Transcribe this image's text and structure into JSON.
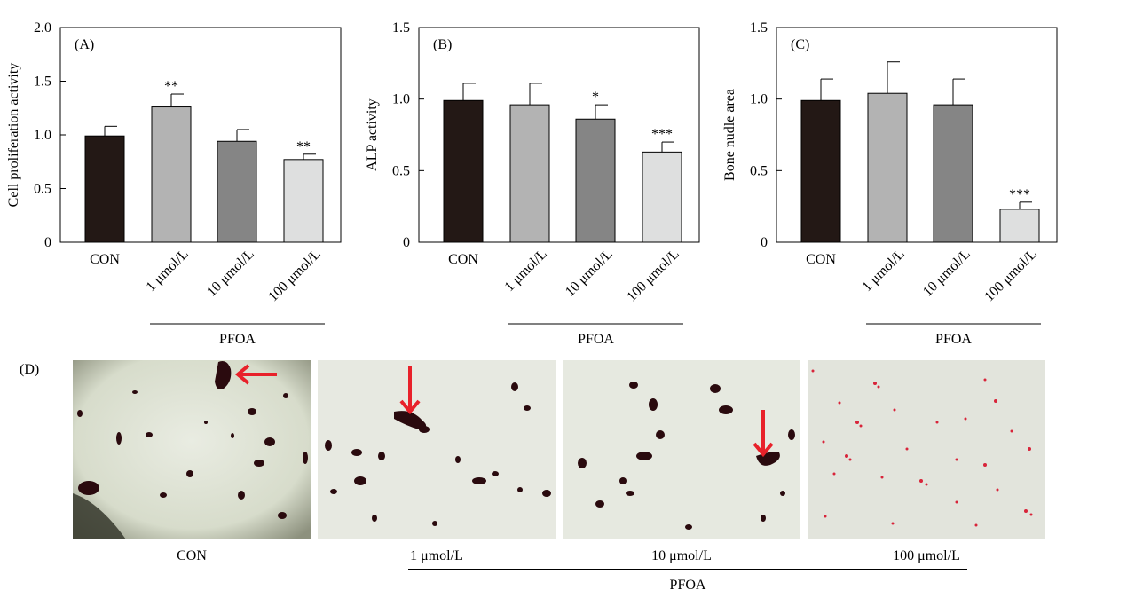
{
  "colors": {
    "CON": "#231815",
    "1 μmol/L": "#b3b3b3",
    "10 μmol/L": "#858585",
    "100 μmol/L": "#dedfdf",
    "arrow": "#e8212a",
    "stain": "#2a0a0e"
  },
  "chart_data": [
    {
      "type": "bar",
      "panel_label": "(A)",
      "ylabel": "Cell proliferation activity",
      "xlabel": "",
      "categories": [
        "CON",
        "1 μmol/L",
        "10 μmol/L",
        "100 μmol/L"
      ],
      "values": [
        0.99,
        1.26,
        0.94,
        0.77
      ],
      "errors": [
        0.09,
        0.12,
        0.11,
        0.05
      ],
      "significance": [
        "",
        "**",
        "",
        "**"
      ],
      "ylim": [
        0,
        2.0
      ],
      "yticks": [
        0,
        0.5,
        1.0,
        1.5,
        2.0
      ],
      "ytick_labels": [
        "0",
        "0.5",
        "1.0",
        "1.5",
        "2.0"
      ],
      "group_label": "PFOA",
      "grid": false
    },
    {
      "type": "bar",
      "panel_label": "(B)",
      "ylabel": "ALP activity",
      "xlabel": "",
      "categories": [
        "CON",
        "1 μmol/L",
        "10 μmol/L",
        "100 μmol/L"
      ],
      "values": [
        0.99,
        0.96,
        0.86,
        0.63
      ],
      "errors": [
        0.12,
        0.15,
        0.1,
        0.07
      ],
      "significance": [
        "",
        "",
        "*",
        "***"
      ],
      "ylim": [
        0,
        1.5
      ],
      "yticks": [
        0,
        0.5,
        1.0,
        1.5
      ],
      "ytick_labels": [
        "0",
        "0.5",
        "1.0",
        "1.5"
      ],
      "group_label": "PFOA",
      "grid": false
    },
    {
      "type": "bar",
      "panel_label": "(C)",
      "ylabel": "Bone nudle area",
      "xlabel": "",
      "categories": [
        "CON",
        "1 μmol/L",
        "10 μmol/L",
        "100 μmol/L"
      ],
      "values": [
        0.99,
        1.04,
        0.96,
        0.23
      ],
      "errors": [
        0.15,
        0.22,
        0.18,
        0.05
      ],
      "significance": [
        "",
        "",
        "",
        "***"
      ],
      "ylim": [
        0,
        1.5
      ],
      "yticks": [
        0,
        0.5,
        1.0,
        1.5
      ],
      "ytick_labels": [
        "0",
        "0.5",
        "1.0",
        "1.5"
      ],
      "group_label": "PFOA",
      "grid": false
    }
  ],
  "panel_d": {
    "label": "(D)",
    "captions": [
      "CON",
      "1 μmol/L",
      "10 μmol/L",
      "100 μmol/L"
    ],
    "group_label": "PFOA"
  }
}
